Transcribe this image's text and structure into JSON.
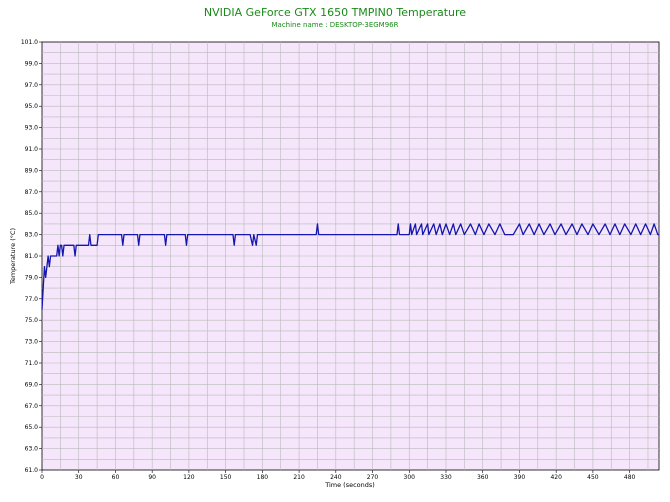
{
  "chart_data": {
    "type": "line",
    "title": "NVIDIA GeForce GTX 1650 TMPIN0 Temperature",
    "subtitle": "Machine name : DESKTOP-3EGM96R",
    "xlabel": "Time (seconds)",
    "ylabel": "Temperature (°C)",
    "xlim": [
      0,
      504
    ],
    "ylim": [
      61.0,
      101.0
    ],
    "x_ticks": [
      "0",
      "30",
      "60",
      "90",
      "120",
      "150",
      "180",
      "210",
      "240",
      "270",
      "300",
      "330",
      "360",
      "390",
      "420",
      "450",
      "480"
    ],
    "y_ticks": [
      "61.0",
      "63.0",
      "65.0",
      "67.0",
      "69.0",
      "71.0",
      "73.0",
      "75.0",
      "77.0",
      "79.0",
      "81.0",
      "83.0",
      "85.0",
      "87.0",
      "89.0",
      "91.0",
      "93.0",
      "95.0",
      "97.0",
      "99.0",
      "101.0"
    ],
    "grid": true,
    "colors": {
      "plot_background": "#f5e6fb",
      "grid": "#b9b9b9",
      "line": "#1515b0",
      "title": "#1a8a1a"
    },
    "series": [
      {
        "values": [
          [
            0,
            76
          ],
          [
            1,
            78
          ],
          [
            2,
            80
          ],
          [
            3,
            79
          ],
          [
            4,
            80
          ],
          [
            5,
            81
          ],
          [
            6,
            80
          ],
          [
            7,
            81
          ],
          [
            8,
            81
          ],
          [
            10,
            81
          ],
          [
            12,
            81
          ],
          [
            13,
            82
          ],
          [
            14,
            81
          ],
          [
            15,
            82
          ],
          [
            16,
            82
          ],
          [
            17,
            81
          ],
          [
            18,
            82
          ],
          [
            20,
            82
          ],
          [
            22,
            82
          ],
          [
            26,
            82
          ],
          [
            27,
            81
          ],
          [
            28,
            82
          ],
          [
            30,
            82
          ],
          [
            35,
            82
          ],
          [
            38,
            82
          ],
          [
            39,
            83
          ],
          [
            40,
            82
          ],
          [
            45,
            82
          ],
          [
            46,
            83
          ],
          [
            48,
            83
          ],
          [
            50,
            83
          ],
          [
            52,
            83
          ],
          [
            55,
            83
          ],
          [
            57,
            83
          ],
          [
            60,
            83
          ],
          [
            63,
            83
          ],
          [
            65,
            83
          ],
          [
            66,
            82
          ],
          [
            67,
            83
          ],
          [
            70,
            83
          ],
          [
            75,
            83
          ],
          [
            78,
            83
          ],
          [
            79,
            82
          ],
          [
            80,
            83
          ],
          [
            85,
            83
          ],
          [
            90,
            83
          ],
          [
            100,
            83
          ],
          [
            101,
            82
          ],
          [
            102,
            83
          ],
          [
            110,
            83
          ],
          [
            117,
            83
          ],
          [
            118,
            82
          ],
          [
            119,
            83
          ],
          [
            130,
            83
          ],
          [
            150,
            83
          ],
          [
            156,
            83
          ],
          [
            157,
            82
          ],
          [
            158,
            83
          ],
          [
            170,
            83
          ],
          [
            172,
            82
          ],
          [
            173,
            83
          ],
          [
            175,
            82
          ],
          [
            176,
            83
          ],
          [
            200,
            83
          ],
          [
            224,
            83
          ],
          [
            225,
            84
          ],
          [
            226,
            83
          ],
          [
            250,
            83
          ],
          [
            280,
            83
          ],
          [
            290,
            83
          ],
          [
            291,
            84
          ],
          [
            292,
            83
          ],
          [
            300,
            83
          ],
          [
            301,
            84
          ],
          [
            302,
            83
          ],
          [
            305,
            84
          ],
          [
            306,
            83
          ],
          [
            310,
            84
          ],
          [
            311,
            83
          ],
          [
            315,
            84
          ],
          [
            316,
            83
          ],
          [
            320,
            84
          ],
          [
            322,
            83
          ],
          [
            325,
            84
          ],
          [
            327,
            83
          ],
          [
            330,
            84
          ],
          [
            333,
            83
          ],
          [
            336,
            84
          ],
          [
            338,
            83
          ],
          [
            342,
            84
          ],
          [
            345,
            83
          ],
          [
            350,
            84
          ],
          [
            354,
            83
          ],
          [
            357,
            84
          ],
          [
            361,
            83
          ],
          [
            365,
            84
          ],
          [
            370,
            83
          ],
          [
            374,
            84
          ],
          [
            378,
            83
          ],
          [
            385,
            83
          ],
          [
            390,
            84
          ],
          [
            393,
            83
          ],
          [
            398,
            84
          ],
          [
            402,
            83
          ],
          [
            406,
            84
          ],
          [
            410,
            83
          ],
          [
            415,
            84
          ],
          [
            419,
            83
          ],
          [
            424,
            84
          ],
          [
            428,
            83
          ],
          [
            433,
            84
          ],
          [
            437,
            83
          ],
          [
            441,
            84
          ],
          [
            446,
            83
          ],
          [
            450,
            84
          ],
          [
            455,
            83
          ],
          [
            460,
            84
          ],
          [
            464,
            83
          ],
          [
            468,
            84
          ],
          [
            472,
            83
          ],
          [
            476,
            84
          ],
          [
            481,
            83
          ],
          [
            485,
            84
          ],
          [
            489,
            83
          ],
          [
            493,
            84
          ],
          [
            497,
            83
          ],
          [
            500,
            84
          ],
          [
            503,
            83
          ],
          [
            504,
            83
          ]
        ]
      }
    ]
  }
}
